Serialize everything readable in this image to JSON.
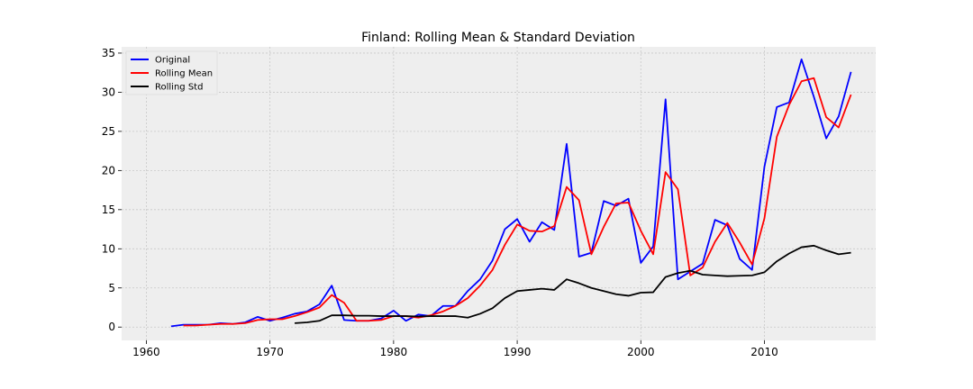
{
  "chart_data": {
    "type": "line",
    "title": "Finland: Rolling Mean & Standard Deviation",
    "xlabel": "",
    "ylabel": "",
    "xlim": [
      1958,
      2019
    ],
    "ylim": [
      -1.7,
      35.8
    ],
    "x_ticks": [
      1960,
      1970,
      1980,
      1990,
      2000,
      2010
    ],
    "y_ticks": [
      0,
      5,
      10,
      15,
      20,
      25,
      30,
      35
    ],
    "grid": true,
    "legend_placement": "top-left",
    "colors": {
      "plot_bg": "#eeeeee",
      "grid": "#c8c8c8"
    },
    "series": [
      {
        "name": "Original",
        "color": "#0000ff",
        "x": [
          1962,
          1963,
          1964,
          1965,
          1966,
          1967,
          1968,
          1969,
          1970,
          1971,
          1972,
          1973,
          1974,
          1975,
          1976,
          1977,
          1978,
          1979,
          1980,
          1981,
          1982,
          1983,
          1984,
          1985,
          1986,
          1987,
          1988,
          1989,
          1990,
          1991,
          1992,
          1993,
          1994,
          1995,
          1996,
          1997,
          1998,
          1999,
          2000,
          2001,
          2002,
          2003,
          2004,
          2005,
          2006,
          2007,
          2008,
          2009,
          2010,
          2011,
          2012,
          2013,
          2014,
          2015,
          2016,
          2017
        ],
        "y": [
          0.1,
          0.3,
          0.3,
          0.3,
          0.5,
          0.4,
          0.6,
          1.3,
          0.8,
          1.2,
          1.7,
          2.0,
          2.9,
          5.3,
          0.9,
          0.8,
          0.8,
          1.1,
          2.1,
          0.8,
          1.6,
          1.4,
          2.7,
          2.7,
          4.6,
          6.1,
          8.5,
          12.5,
          13.8,
          10.9,
          13.4,
          12.4,
          23.4,
          9.0,
          9.5,
          16.1,
          15.5,
          16.4,
          8.2,
          10.3,
          29.1,
          6.1,
          7.1,
          8.1,
          13.7,
          13.0,
          8.7,
          7.3,
          20.5,
          28.1,
          28.7,
          34.2,
          29.4,
          24.1,
          26.9,
          32.6
        ]
      },
      {
        "name": "Rolling Mean",
        "color": "#ff0000",
        "x": [
          1963,
          1964,
          1965,
          1966,
          1967,
          1968,
          1969,
          1970,
          1971,
          1972,
          1973,
          1974,
          1975,
          1976,
          1977,
          1978,
          1979,
          1980,
          1981,
          1982,
          1983,
          1984,
          1985,
          1986,
          1987,
          1988,
          1989,
          1990,
          1991,
          1992,
          1993,
          1994,
          1995,
          1996,
          1997,
          1998,
          1999,
          2000,
          2001,
          2002,
          2003,
          2004,
          2005,
          2006,
          2007,
          2008,
          2009,
          2010,
          2011,
          2012,
          2013,
          2014,
          2015,
          2016,
          2017
        ],
        "y": [
          0.2,
          0.2,
          0.3,
          0.4,
          0.4,
          0.5,
          0.9,
          1.0,
          1.0,
          1.4,
          1.9,
          2.5,
          4.1,
          3.1,
          0.8,
          0.8,
          0.9,
          1.4,
          1.4,
          1.2,
          1.5,
          2.0,
          2.7,
          3.7,
          5.3,
          7.3,
          10.5,
          13.1,
          12.3,
          12.2,
          12.9,
          17.9,
          16.2,
          9.3,
          12.8,
          15.8,
          15.9,
          12.3,
          9.3,
          19.8,
          17.6,
          6.6,
          7.6,
          10.9,
          13.3,
          10.8,
          8.0,
          13.9,
          24.3,
          28.4,
          31.4,
          31.8,
          26.8,
          25.5,
          29.7
        ]
      },
      {
        "name": "Rolling Std",
        "color": "#000000",
        "x": [
          1972,
          1973,
          1974,
          1975,
          1976,
          1977,
          1978,
          1979,
          1980,
          1981,
          1982,
          1983,
          1984,
          1985,
          1986,
          1987,
          1988,
          1989,
          1990,
          1991,
          1992,
          1993,
          1994,
          1995,
          1996,
          1997,
          1998,
          1999,
          2000,
          2001,
          2002,
          2003,
          2004,
          2005,
          2006,
          2007,
          2008,
          2009,
          2010,
          2011,
          2012,
          2013,
          2014,
          2015,
          2016,
          2017
        ],
        "y": [
          0.5,
          0.6,
          0.8,
          1.5,
          1.5,
          1.45,
          1.45,
          1.4,
          1.4,
          1.4,
          1.35,
          1.4,
          1.4,
          1.4,
          1.2,
          1.7,
          2.4,
          3.7,
          4.6,
          4.75,
          4.9,
          4.75,
          6.1,
          5.6,
          5.0,
          4.6,
          4.2,
          4.0,
          4.4,
          4.45,
          6.4,
          6.9,
          7.2,
          6.7,
          6.6,
          6.5,
          6.55,
          6.6,
          7.0,
          8.4,
          9.4,
          10.2,
          10.4,
          9.8,
          9.3,
          9.5
        ]
      }
    ]
  }
}
